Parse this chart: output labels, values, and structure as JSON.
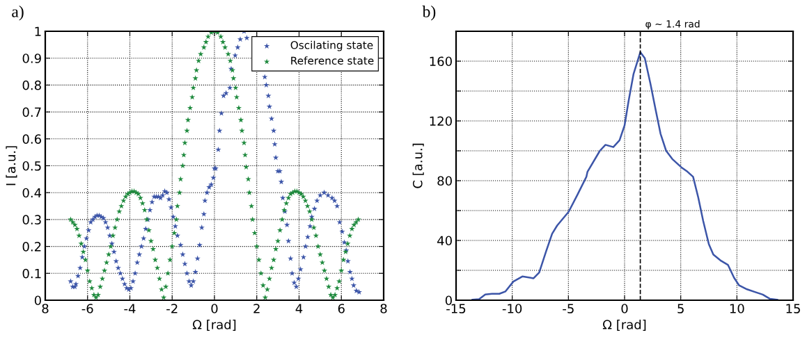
{
  "chart_data": [
    {
      "type": "scatter",
      "annotations": [
        "a)"
      ],
      "xlabel": "Ω [rad]",
      "ylabel": "I [a.u.]",
      "xlim": [
        -8,
        8
      ],
      "xticks": [
        {
          "value": -8,
          "label": "8"
        },
        -6,
        -4,
        -2,
        0,
        2,
        4,
        6,
        8
      ],
      "ylim": [
        0,
        1
      ],
      "yticks": [
        0,
        0.1,
        0.2,
        0.3,
        0.4,
        0.5,
        0.6,
        0.7,
        0.8,
        0.9,
        1
      ],
      "grid": true,
      "legend": "top right",
      "marker": "star",
      "series": [
        {
          "name": "Oscilating state",
          "color": "#3c55a8",
          "x": [
            -6.8,
            -6.7,
            -6.6,
            -6.55,
            -6.45,
            -6.35,
            -6.25,
            -6.15,
            -6.05,
            -5.95,
            -5.85,
            -5.75,
            -5.65,
            -5.55,
            -5.45,
            -5.35,
            -5.25,
            -5.15,
            -5.05,
            -4.95,
            -4.85,
            -4.75,
            -4.65,
            -4.55,
            -4.45,
            -4.35,
            -4.25,
            -4.15,
            -4.05,
            -3.95,
            -3.85,
            -3.75,
            -3.65,
            -3.55,
            -3.45,
            -3.35,
            -3.25,
            -3.15,
            -3.05,
            -2.95,
            -2.85,
            -2.75,
            -2.65,
            -2.55,
            -2.45,
            -2.35,
            -2.25,
            -2.15,
            -2.05,
            -1.95,
            -1.85,
            -1.75,
            -1.6,
            -1.5,
            -1.4,
            -1.3,
            -1.2,
            -1.1,
            -1.0,
            -0.9,
            -0.8,
            -0.7,
            -0.6,
            -0.5,
            -0.45,
            -0.35,
            -0.25,
            -0.15,
            -0.05,
            0.0,
            0.06,
            0.18,
            0.24,
            0.33,
            0.43,
            0.55,
            0.73,
            0.79,
            0.98,
            1.1,
            1.22,
            1.4,
            1.53,
            2.38,
            2.45,
            2.55,
            2.6,
            2.7,
            2.8,
            2.85,
            2.9,
            3.0,
            3.09,
            3.16,
            3.23,
            3.33,
            3.43,
            3.5,
            3.6,
            3.67,
            3.77,
            3.87,
            3.97,
            4.07,
            4.21,
            4.31,
            4.41,
            4.52,
            4.6,
            4.73,
            4.85,
            5.0,
            5.19,
            5.37,
            5.56,
            5.68,
            5.8,
            5.92,
            6.04,
            6.14,
            6.23,
            6.31,
            6.41,
            6.5,
            6.58,
            6.71,
            6.84
          ],
          "values": [
            0.07,
            0.05,
            0.05,
            0.06,
            0.09,
            0.12,
            0.16,
            0.2,
            0.23,
            0.26,
            0.29,
            0.3,
            0.31,
            0.315,
            0.315,
            0.31,
            0.305,
            0.29,
            0.27,
            0.24,
            0.21,
            0.18,
            0.145,
            0.12,
            0.1,
            0.08,
            0.06,
            0.045,
            0.04,
            0.045,
            0.07,
            0.1,
            0.14,
            0.17,
            0.2,
            0.23,
            0.265,
            0.3,
            0.335,
            0.365,
            0.385,
            0.385,
            0.385,
            0.38,
            0.39,
            0.405,
            0.4,
            0.375,
            0.345,
            0.31,
            0.275,
            0.24,
            0.205,
            0.17,
            0.135,
            0.1,
            0.07,
            0.055,
            0.07,
            0.105,
            0.155,
            0.205,
            0.27,
            0.32,
            0.37,
            0.4,
            0.42,
            0.43,
            0.455,
            0.49,
            0.49,
            0.56,
            0.63,
            0.695,
            0.76,
            0.77,
            0.79,
            0.86,
            0.91,
            0.94,
            0.97,
            1.0,
            0.975,
            0.83,
            0.8,
            0.76,
            0.72,
            0.675,
            0.63,
            0.58,
            0.53,
            0.48,
            0.48,
            0.44,
            0.38,
            0.33,
            0.28,
            0.22,
            0.155,
            0.1,
            0.065,
            0.05,
            0.08,
            0.115,
            0.16,
            0.2,
            0.235,
            0.275,
            0.31,
            0.34,
            0.37,
            0.39,
            0.4,
            0.39,
            0.38,
            0.37,
            0.35,
            0.29,
            0.255,
            0.215,
            0.185,
            0.145,
            0.105,
            0.08,
            0.055,
            0.035,
            0.03
          ]
        },
        {
          "name": "Reference state",
          "color": "#1f8a3e",
          "x": [
            -6.8,
            -6.7,
            -6.6,
            -6.5,
            -6.4,
            -6.3,
            -6.2,
            -6.1,
            -6.0,
            -5.9,
            -5.8,
            -5.7,
            -5.6,
            -5.5,
            -5.4,
            -5.3,
            -5.2,
            -5.1,
            -5.0,
            -4.9,
            -4.8,
            -4.7,
            -4.6,
            -4.5,
            -4.4,
            -4.3,
            -4.2,
            -4.1,
            -4.0,
            -3.9,
            -3.8,
            -3.7,
            -3.6,
            -3.5,
            -3.4,
            -3.3,
            -3.2,
            -3.1,
            -3.0,
            -2.9,
            -2.8,
            -2.7,
            -2.6,
            -2.5,
            -2.4,
            -2.3,
            -2.2,
            -2.1,
            -2.0,
            -1.9,
            -1.8,
            -1.75,
            -1.65,
            -1.6,
            -1.5,
            -1.45,
            -1.4,
            -1.3,
            -1.25,
            -1.15,
            -1.05,
            -1.0,
            -0.9,
            -0.85,
            -0.75,
            -0.65,
            -0.5,
            -0.4,
            -0.3,
            -0.15,
            0,
            0.15,
            0.3,
            0.4,
            0.5,
            0.65,
            0.75,
            0.85,
            0.9,
            1.0,
            1.05,
            1.15,
            1.25,
            1.3,
            1.4,
            1.45,
            1.5,
            1.6,
            1.65,
            1.75,
            1.8,
            1.9,
            2.0,
            2.1,
            2.2,
            2.3,
            2.4,
            2.5,
            2.6,
            2.7,
            2.8,
            2.9,
            3.0,
            3.1,
            3.2,
            3.3,
            3.4,
            3.5,
            3.6,
            3.7,
            3.8,
            3.9,
            4.0,
            4.1,
            4.2,
            4.3,
            4.4,
            4.5,
            4.6,
            4.7,
            4.8,
            4.9,
            5.0,
            5.1,
            5.2,
            5.3,
            5.4,
            5.5,
            5.6,
            5.7,
            5.8,
            5.9,
            6.0,
            6.1,
            6.2,
            6.3,
            6.4,
            6.5,
            6.6,
            6.7,
            6.8
          ],
          "values": [
            0.3,
            0.29,
            0.28,
            0.265,
            0.24,
            0.21,
            0.18,
            0.15,
            0.11,
            0.07,
            0.045,
            0.02,
            0.01,
            0.02,
            0.05,
            0.08,
            0.11,
            0.14,
            0.17,
            0.2,
            0.24,
            0.27,
            0.3,
            0.33,
            0.35,
            0.37,
            0.385,
            0.395,
            0.4,
            0.405,
            0.405,
            0.4,
            0.395,
            0.38,
            0.36,
            0.335,
            0.3,
            0.26,
            0.22,
            0.19,
            0.15,
            0.12,
            0.08,
            0.04,
            0.01,
            0.05,
            0.1,
            0.15,
            0.2,
            0.25,
            0.3,
            0.35,
            0.4,
            0.45,
            0.5,
            0.54,
            0.585,
            0.63,
            0.67,
            0.715,
            0.755,
            0.79,
            0.825,
            0.855,
            0.89,
            0.915,
            0.94,
            0.96,
            0.98,
            0.995,
            1.0,
            0.995,
            0.98,
            0.96,
            0.94,
            0.915,
            0.89,
            0.855,
            0.825,
            0.79,
            0.755,
            0.715,
            0.67,
            0.63,
            0.585,
            0.54,
            0.495,
            0.45,
            0.4,
            0.35,
            0.3,
            0.25,
            0.2,
            0.15,
            0.1,
            0.055,
            0.01,
            0.04,
            0.08,
            0.12,
            0.15,
            0.19,
            0.22,
            0.26,
            0.3,
            0.335,
            0.36,
            0.38,
            0.395,
            0.4,
            0.405,
            0.405,
            0.4,
            0.395,
            0.385,
            0.37,
            0.35,
            0.33,
            0.3,
            0.27,
            0.24,
            0.2,
            0.17,
            0.14,
            0.11,
            0.08,
            0.05,
            0.02,
            0.01,
            0.02,
            0.045,
            0.07,
            0.11,
            0.15,
            0.18,
            0.21,
            0.24,
            0.265,
            0.28,
            0.29,
            0.3
          ]
        }
      ]
    },
    {
      "type": "line",
      "annotations": [
        "b)"
      ],
      "xlabel": "Ω [rad]",
      "ylabel": "C [a.u.]",
      "xlim": [
        -15,
        15
      ],
      "xticks": [
        -15,
        -10,
        -5,
        0,
        5,
        10,
        15
      ],
      "ylim": [
        0,
        180
      ],
      "yticks": [
        0,
        {
          "value": 20,
          "label": null
        },
        40,
        {
          "value": 60,
          "label": null
        },
        80,
        {
          "value": 100,
          "label": null
        },
        120,
        {
          "value": 140,
          "label": null
        },
        160
      ],
      "grid": true,
      "line_style": "solid",
      "ref_lines": [
        {
          "axis": "x",
          "value": 1.4,
          "label": "φ ~ 1.4 rad",
          "color": "#000000",
          "line_style": "dashed"
        }
      ],
      "series": [
        {
          "color": "#3c55a8",
          "x": [
            -13.55,
            -12.95,
            -12.4,
            -11.8,
            -11.15,
            -10.6,
            -9.9,
            -9.1,
            -8.1,
            -7.6,
            -7.0,
            -6.45,
            -6.0,
            -4.98,
            -4.2,
            -3.4,
            -3.3,
            -2.2,
            -1.7,
            -1.0,
            -0.45,
            0.0,
            0.35,
            0.8,
            1.4,
            1.8,
            2.3,
            2.75,
            3.2,
            3.7,
            4.25,
            5.05,
            5.6,
            6.1,
            6.56,
            7.0,
            7.5,
            7.9,
            8.6,
            9.2,
            9.75,
            10.2,
            10.9,
            11.6,
            12.3,
            12.95,
            13.6
          ],
          "values": [
            0.3,
            0.7,
            3.8,
            4.3,
            4.3,
            5.9,
            12.5,
            15.9,
            14.7,
            18.5,
            32.4,
            44.5,
            50,
            59.2,
            70.5,
            82.6,
            86,
            100,
            104,
            102.5,
            107,
            117,
            133,
            151.5,
            166,
            162,
            145,
            128,
            111.5,
            100,
            94.5,
            89,
            86,
            82.6,
            68.7,
            53,
            37.6,
            30.6,
            26.3,
            23.7,
            15,
            9.9,
            7.3,
            5.5,
            3.8,
            0.9,
            0.3
          ]
        }
      ]
    }
  ]
}
